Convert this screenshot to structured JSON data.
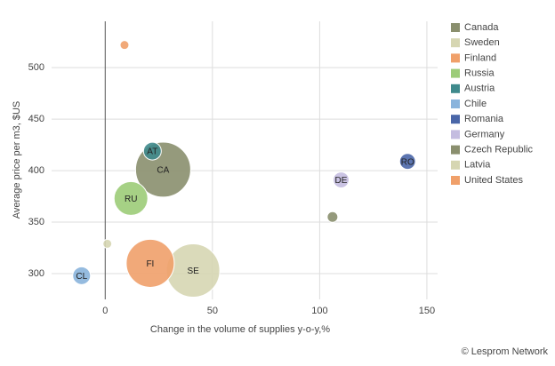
{
  "chart_data": {
    "type": "bubble",
    "xlabel": "Change in the volume of supplies y-o-y,%",
    "ylabel": "Average price per m3, $US",
    "xlim": [
      -25,
      155
    ],
    "ylim": [
      275,
      545
    ],
    "xticks": [
      0,
      50,
      100,
      150
    ],
    "yticks": [
      300,
      350,
      400,
      450,
      500
    ],
    "grid": true,
    "legend": "right",
    "series": [
      {
        "name": "Canada",
        "color": "#8a8f6e",
        "x": 27,
        "y": 401,
        "size": 960,
        "label": "CA"
      },
      {
        "name": "Sweden",
        "color": "#d6d6b2",
        "x": 41,
        "y": 303,
        "size": 900,
        "label": "SE"
      },
      {
        "name": "Finland",
        "color": "#f0a06a",
        "x": 21,
        "y": 310,
        "size": 730,
        "label": "FI"
      },
      {
        "name": "Russia",
        "color": "#9ccc78",
        "x": 12,
        "y": 373,
        "size": 360,
        "label": "RU"
      },
      {
        "name": "Austria",
        "color": "#3f8a8c",
        "x": 22,
        "y": 419,
        "size": 100,
        "label": "AT"
      },
      {
        "name": "Chile",
        "color": "#8ab4dc",
        "x": -11,
        "y": 298,
        "size": 100,
        "label": "CL"
      },
      {
        "name": "Romania",
        "color": "#4a66a8",
        "x": 141,
        "y": 409,
        "size": 80,
        "label": "RO"
      },
      {
        "name": "Germany",
        "color": "#c4bce0",
        "x": 110,
        "y": 391,
        "size": 80,
        "label": "DE"
      },
      {
        "name": "Czech Republic",
        "color": "#8a8f6e",
        "x": 106,
        "y": 355,
        "size": 36
      },
      {
        "name": "Latvia",
        "color": "#d6d6b2",
        "x": 1,
        "y": 329,
        "size": 25
      },
      {
        "name": "United States",
        "color": "#f0a06a",
        "x": 9,
        "y": 522,
        "size": 25
      }
    ],
    "credit": "© Lesprom Network"
  }
}
